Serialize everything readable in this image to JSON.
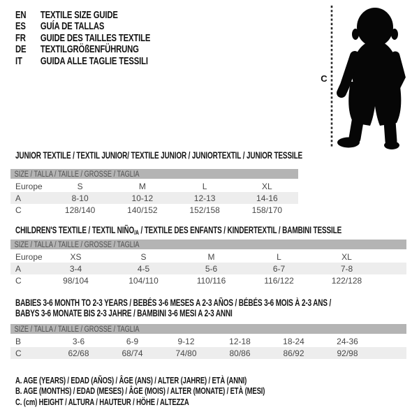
{
  "languages": [
    {
      "code": "EN",
      "label": "TEXTILE SIZE GUIDE"
    },
    {
      "code": "ES",
      "label": "GUÍA DE TALLAS"
    },
    {
      "code": "FR",
      "label": "GUIDE DES TAILLES TEXTILE"
    },
    {
      "code": "DE",
      "label": "TEXTILGRÖßENFÜHRUNG"
    },
    {
      "code": "IT",
      "label": "GUIDA ALLE TAGLIE TESSILI"
    }
  ],
  "figure": {
    "height_label": "C"
  },
  "tables": [
    {
      "title": "JUNIOR TEXTILE / TEXTIL JUNIOR/ TEXTILE JUNIOR / JUNIORTEXTIL / JUNIOR TESSILE",
      "size_header": "SIZE / TALLA / TAILLE / GRÖSSE / TAGLIA",
      "rows": [
        {
          "label": "Europe",
          "values": [
            "S",
            "M",
            "L",
            "XL"
          ]
        },
        {
          "label": "A",
          "values": [
            "8-10",
            "10-12",
            "12-13",
            "14-16"
          ]
        },
        {
          "label": "C",
          "values": [
            "128/140",
            "140/152",
            "152/158",
            "158/170"
          ]
        }
      ]
    },
    {
      "title_pre": "CHILDREN'S TEXTILE / TEXTIL NIÑO",
      "title_sub": "/A",
      "title_post": " / TEXTILE DES ENFANTS / KINDERTEXTIL / BAMBINI TESSILE",
      "size_header": "SIZE / TALLA / TAILLE / GRÖSSE / TAGLIA",
      "rows": [
        {
          "label": "Europe",
          "values": [
            "XS",
            "S",
            "M",
            "L",
            "XL"
          ]
        },
        {
          "label": "A",
          "values": [
            "3-4",
            "4-5",
            "5-6",
            "6-7",
            "7-8"
          ]
        },
        {
          "label": "C",
          "values": [
            "98/104",
            "104/110",
            "110/116",
            "116/122",
            "122/128"
          ]
        }
      ]
    },
    {
      "title_line1": "BABIES 3-6 MONTH TO 2-3 YEARS / BEBÉS 3-6 MESES A 2-3 AÑOS / BÉBÉS 3-6 MOIS À 2-3 ANS /",
      "title_line2": "BABYS 3-6 MONATE BIS 2-3 JAHRE / BAMBINI 3-6 MESI A 2-3 ANNI",
      "size_header": "SIZE / TALLA / TAILLE / GRÖSSE / TAGLIA",
      "rows": [
        {
          "label": "B",
          "values": [
            "3-6",
            "6-9",
            "9-12",
            "12-18",
            "18-24",
            "24-36"
          ]
        },
        {
          "label": "C",
          "values": [
            "62/68",
            "68/74",
            "74/80",
            "80/86",
            "86/92",
            "92/98"
          ]
        }
      ]
    }
  ],
  "legend": {
    "items": [
      "A. AGE (YEARS) / EDAD (AÑOS) / ÂGE (ANS) / ALTER (JAHRE) / ETÀ (ANNI)",
      "B. AGE (MONTHS) / EDAD (MESES) / ÂGE (MOIS) / ALTER (MONATE) / ETÀ (MESI)",
      "C. (cm) HEIGHT / ALTURA / HAUTEUR / HÖHE / ALTEZZA"
    ]
  },
  "colors": {
    "header_bar": "#b4b4b4",
    "row_alternate": "#ededed",
    "silhouette": "#060606",
    "text_dark": "#151515",
    "text_table": "#474747"
  }
}
